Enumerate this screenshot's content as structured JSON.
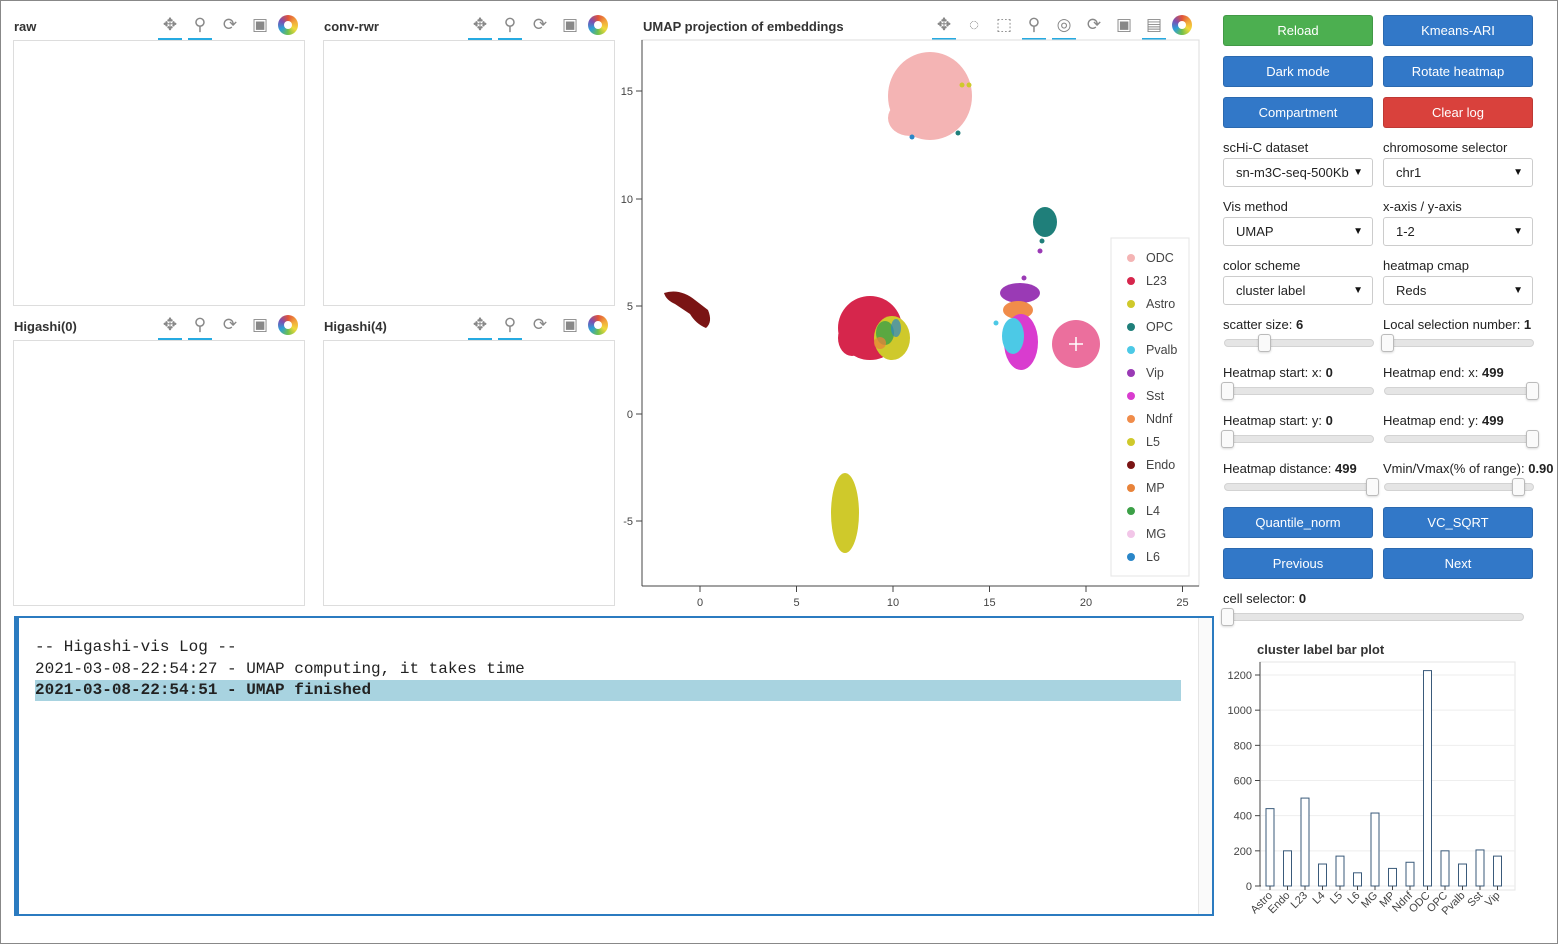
{
  "panels": [
    {
      "title": "raw"
    },
    {
      "title": "conv-rwr"
    },
    {
      "title": "Higashi(0)"
    },
    {
      "title": "Higashi(4)"
    }
  ],
  "umap": {
    "title": "UMAP projection of embeddings",
    "x_ticks": [
      "0",
      "5",
      "10",
      "15",
      "20",
      "25"
    ],
    "y_ticks": [
      "15",
      "10",
      "5",
      "0",
      "-5"
    ],
    "legend": [
      {
        "label": "ODC",
        "color": "#f4b4b4"
      },
      {
        "label": "L23",
        "color": "#d6264c"
      },
      {
        "label": "Astro",
        "color": "#cfc92b"
      },
      {
        "label": "OPC",
        "color": "#1f7f7a"
      },
      {
        "label": "Pvalb",
        "color": "#4cc9e6"
      },
      {
        "label": "Vip",
        "color": "#9a3ab5"
      },
      {
        "label": "Sst",
        "color": "#d93ccf"
      },
      {
        "label": "Ndnf",
        "color": "#f08c4a"
      },
      {
        "label": "L5",
        "color": "#cfc92b"
      },
      {
        "label": "Endo",
        "color": "#7a1414"
      },
      {
        "label": "MP",
        "color": "#e8833a"
      },
      {
        "label": "L4",
        "color": "#3ca047"
      },
      {
        "label": "MG",
        "color": "#f2c6e8"
      },
      {
        "label": "L6",
        "color": "#2a86c8"
      }
    ]
  },
  "chart_data": {
    "type": "bar",
    "title": "cluster label bar plot",
    "categories": [
      "Astro",
      "Endo",
      "L23",
      "L4",
      "L5",
      "L6",
      "MG",
      "MP",
      "Ndnf",
      "ODC",
      "OPC",
      "Pvalb",
      "Sst",
      "Vip"
    ],
    "values": [
      440,
      200,
      500,
      125,
      170,
      75,
      415,
      100,
      135,
      1225,
      200,
      125,
      205,
      170
    ],
    "y_ticks": [
      "0",
      "200",
      "400",
      "600",
      "800",
      "1000",
      "1200"
    ],
    "ylim": [
      0,
      1260
    ]
  },
  "controls": {
    "reload": "Reload",
    "kmeans": "Kmeans-ARI",
    "dark_mode": "Dark mode",
    "rotate_heatmap": "Rotate heatmap",
    "compartment": "Compartment",
    "clear_log": "Clear log",
    "dataset_label": "scHi-C dataset",
    "dataset_value": "sn-m3C-seq-500Kb",
    "chrom_label": "chromosome selector",
    "chrom_value": "chr1",
    "vis_label": "Vis method",
    "vis_value": "UMAP",
    "axis_label": "x-axis / y-axis",
    "axis_value": "1-2",
    "color_label": "color scheme",
    "color_value": "cluster label",
    "cmap_label": "heatmap cmap",
    "cmap_value": "Reds",
    "scatter_label": "scatter size: ",
    "scatter_value": "6",
    "local_label": "Local selection number: ",
    "local_value": "1",
    "hstartx_label": "Heatmap start: x: ",
    "hstartx_value": "0",
    "hendx_label": "Heatmap end: x: ",
    "hendx_value": "499",
    "hstarty_label": "Heatmap start: y: ",
    "hstarty_value": "0",
    "hendy_label": "Heatmap end: y: ",
    "hendy_value": "499",
    "hdist_label": "Heatmap distance: ",
    "hdist_value": "499",
    "vmin_label": "Vmin/Vmax(% of range): ",
    "vmin_value": "0.90",
    "quantile": "Quantile_norm",
    "vcsqrt": "VC_SQRT",
    "previous": "Previous",
    "next": "Next",
    "cell_label": "cell selector: ",
    "cell_value": "0"
  },
  "log": {
    "header": "-- Higashi-vis Log --",
    "lines": [
      "2021-03-08-22:54:27 - UMAP computing, it takes time",
      "2021-03-08-22:54:51 - UMAP finished"
    ]
  }
}
